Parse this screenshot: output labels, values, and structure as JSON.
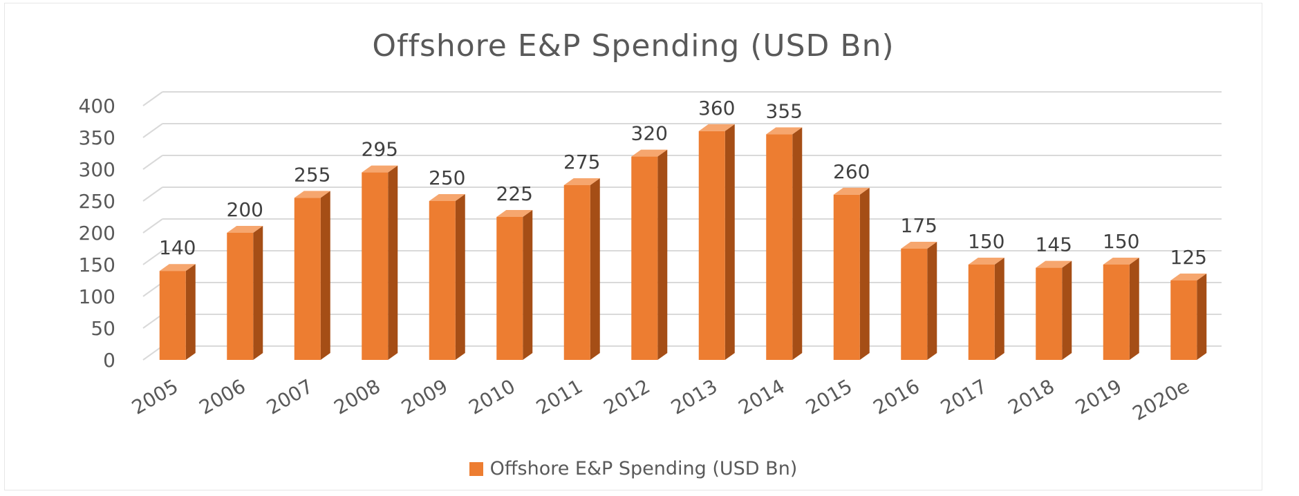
{
  "chart_data": {
    "type": "bar",
    "title": "Offshore E&P Spending (USD Bn)",
    "xlabel": "",
    "ylabel": "",
    "categories": [
      "2005",
      "2006",
      "2007",
      "2008",
      "2009",
      "2010",
      "2011",
      "2012",
      "2013",
      "2014",
      "2015",
      "2016",
      "2017",
      "2018",
      "2019",
      "2020e"
    ],
    "series": [
      {
        "name": "Offshore E&P Spending (USD Bn)",
        "values": [
          140,
          200,
          255,
          295,
          250,
          225,
          275,
          320,
          360,
          355,
          260,
          175,
          150,
          145,
          150,
          125
        ],
        "data_labels": [
          "140",
          "200",
          "255",
          "295",
          "250",
          "225",
          "275",
          "320",
          "360",
          "355",
          "260",
          "175",
          "150",
          "145",
          "150",
          "125"
        ]
      }
    ],
    "ylim": [
      0,
      400
    ],
    "yticks": [
      "0",
      "50",
      "100",
      "150",
      "200",
      "250",
      "300",
      "350",
      "400"
    ],
    "grid": true,
    "legend_position": "bottom",
    "style": "3d-column",
    "colors": {
      "front": "#ED7D31",
      "side": "#A54E16",
      "top": "#F6A66E",
      "grid": "#D9D9D9",
      "text": "#595959"
    }
  }
}
